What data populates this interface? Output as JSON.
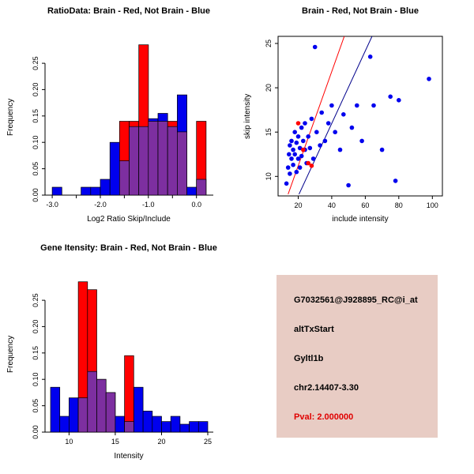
{
  "colors": {
    "red": "#FF0000",
    "blue": "#0000EE",
    "overlap": "#7D2FA0",
    "line_red": "#FF0000",
    "line_blue": "#00008B",
    "axis": "#000000",
    "info_bg": "#E8CCC4",
    "pval": "#E00000"
  },
  "chart_data": [
    {
      "id": "ratio_hist",
      "type": "bar",
      "title": "RatioData: Brain - Red, Not Brain - Blue",
      "xlabel": "Log2 Ratio Skip/Include",
      "ylabel": "Frequency",
      "bin_start": -3.0,
      "bin_width": 0.2,
      "series": [
        {
          "name": "Not Brain",
          "color": "blue",
          "values": [
            0.015,
            0,
            0,
            0.015,
            0.015,
            0.03,
            0.1,
            0.065,
            0.13,
            0.13,
            0.145,
            0.155,
            0.13,
            0.19,
            0.015,
            0.03
          ]
        },
        {
          "name": "Brain",
          "color": "red",
          "values": [
            0,
            0,
            0,
            0,
            0,
            0,
            0,
            0.14,
            0.14,
            0.285,
            0.14,
            0.14,
            0.14,
            0.12,
            0,
            0.14
          ]
        }
      ],
      "xlim": [
        -3.15,
        0.35
      ],
      "ylim": [
        0,
        0.295
      ],
      "xticks": [
        -3,
        -2.5,
        -2,
        -1.5,
        -1,
        -0.5,
        0
      ],
      "xtick_labels": [
        "-3.0",
        "",
        "-2.0",
        "",
        "-1.0",
        "",
        "0.0"
      ],
      "yticks": [
        0,
        0.05,
        0.1,
        0.15,
        0.2,
        0.25
      ],
      "ytick_labels": [
        "0.00",
        "0.05",
        "0.10",
        "0.15",
        "0.20",
        "0.25"
      ]
    },
    {
      "id": "intensity_scatter",
      "type": "scatter",
      "title": "Brain - Red, Not Brain - Blue",
      "xlabel": "include intensity",
      "ylabel": "skip intensity",
      "xlim": [
        8,
        106
      ],
      "ylim": [
        7.8,
        25.8
      ],
      "xticks": [
        20,
        40,
        60,
        80,
        100
      ],
      "xtick_labels": [
        "20",
        "40",
        "60",
        "80",
        "100"
      ],
      "yticks": [
        10,
        15,
        20,
        25
      ],
      "ytick_labels": [
        "10",
        "15",
        "20",
        "25"
      ],
      "blue_points": [
        [
          13,
          9.2
        ],
        [
          14,
          11
        ],
        [
          14.5,
          12.5
        ],
        [
          15,
          13.5
        ],
        [
          15,
          10.3
        ],
        [
          16,
          12
        ],
        [
          16,
          14
        ],
        [
          17,
          11.3
        ],
        [
          17,
          13
        ],
        [
          18,
          12.5
        ],
        [
          18,
          15
        ],
        [
          19,
          10.5
        ],
        [
          19,
          13.8
        ],
        [
          20,
          12
        ],
        [
          20,
          14.5
        ],
        [
          21,
          11
        ],
        [
          21,
          13.2
        ],
        [
          22,
          15.5
        ],
        [
          22,
          12.3
        ],
        [
          23,
          14
        ],
        [
          24,
          13
        ],
        [
          24,
          16
        ],
        [
          25,
          11.5
        ],
        [
          26,
          14.5
        ],
        [
          27,
          13.2
        ],
        [
          28,
          16.5
        ],
        [
          29,
          12
        ],
        [
          30,
          24.6
        ],
        [
          31,
          15
        ],
        [
          33,
          13.5
        ],
        [
          34,
          17.2
        ],
        [
          36,
          14
        ],
        [
          38,
          16
        ],
        [
          40,
          18
        ],
        [
          42,
          15
        ],
        [
          45,
          13
        ],
        [
          47,
          17
        ],
        [
          50,
          9
        ],
        [
          52,
          15.5
        ],
        [
          55,
          18
        ],
        [
          58,
          14
        ],
        [
          63,
          23.5
        ],
        [
          65,
          18
        ],
        [
          70,
          13
        ],
        [
          75,
          19
        ],
        [
          78,
          9.5
        ],
        [
          80,
          18.6
        ],
        [
          98,
          21
        ]
      ],
      "red_points": [
        [
          20,
          16
        ],
        [
          23,
          13
        ],
        [
          26,
          11.5
        ],
        [
          28,
          11.2
        ]
      ],
      "red_line": [
        [
          14,
          8
        ],
        [
          47.5,
          25.8
        ]
      ],
      "blue_line": [
        [
          20.5,
          8
        ],
        [
          64,
          25.8
        ]
      ]
    },
    {
      "id": "gene_hist",
      "type": "bar",
      "title": "Gene Itensity: Brain - Red, Not Brain - Blue",
      "xlabel": "Intensity",
      "ylabel": "Frequency",
      "bin_start": 8,
      "bin_width": 1,
      "series": [
        {
          "name": "Not Brain",
          "color": "blue",
          "values": [
            0.085,
            0.03,
            0.065,
            0.065,
            0.115,
            0.1,
            0.075,
            0.03,
            0.02,
            0.085,
            0.04,
            0.03,
            0.02,
            0.03,
            0.015,
            0.02,
            0.02
          ]
        },
        {
          "name": "Brain",
          "color": "red",
          "values": [
            0,
            0,
            0,
            0.285,
            0.27,
            0.1,
            0.075,
            0,
            0.145,
            0,
            0,
            0,
            0,
            0,
            0,
            0,
            0
          ]
        }
      ],
      "xlim": [
        7.4,
        25.6
      ],
      "ylim": [
        0,
        0.295
      ],
      "xticks": [
        10,
        15,
        20,
        25
      ],
      "xtick_labels": [
        "10",
        "15",
        "20",
        "25"
      ],
      "yticks": [
        0,
        0.05,
        0.1,
        0.15,
        0.2,
        0.25
      ],
      "ytick_labels": [
        "0.00",
        "0.05",
        "0.10",
        "0.15",
        "0.20",
        "0.25"
      ]
    }
  ],
  "info_panel": {
    "probe_id": "G7032561@J928895_RC@i_at",
    "event_type": "altTxStart",
    "gene": "Gyltl1b",
    "location": "chr2.14407-3.30",
    "pval": "Pval: 2.000000"
  }
}
